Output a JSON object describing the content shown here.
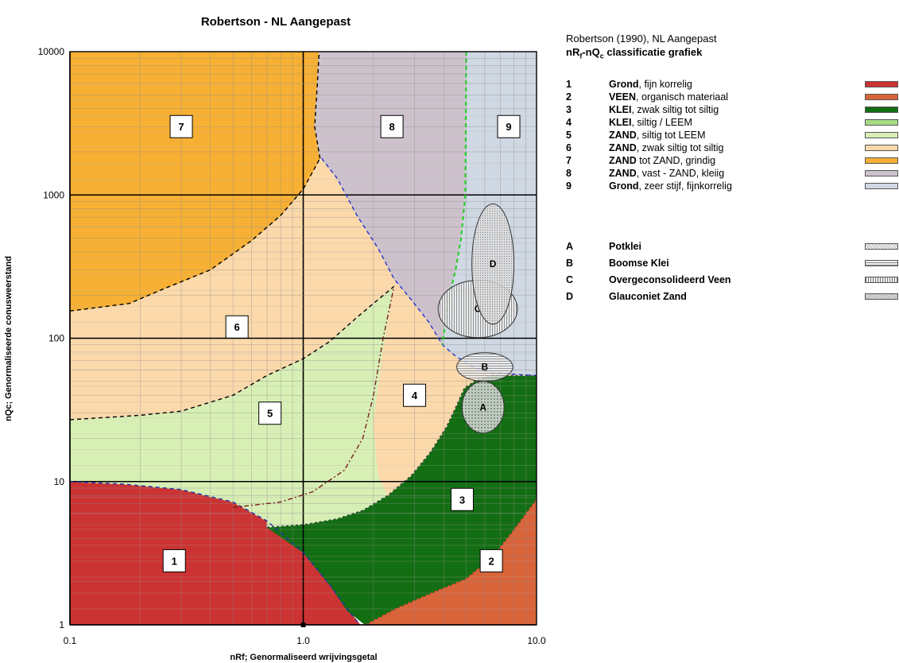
{
  "chart_data": {
    "type": "area",
    "title": "Robertson - NL Aangepast",
    "xlabel": "nRf; Genormaliseerd wrijvingsgetal",
    "ylabel": "nQc; Genormaliseerde conusweerstand",
    "xscale": "log",
    "yscale": "log",
    "xlim": [
      0.1,
      10.0
    ],
    "ylim": [
      1,
      10000
    ],
    "x_tick_labels": [
      "0.1",
      "1.0",
      "10.0"
    ],
    "y_tick_labels": [
      "1",
      "10",
      "100",
      "1000",
      "10000"
    ],
    "grid": true,
    "legend": "right",
    "zones": [
      {
        "id": "1",
        "color": "#cc3333",
        "label_pos": [
          0.28,
          2.8
        ],
        "boundary": [
          [
            0.1,
            1
          ],
          [
            0.1,
            10
          ],
          [
            0.17,
            9.6
          ],
          [
            0.3,
            8.8
          ],
          [
            0.5,
            7.2
          ],
          [
            0.7,
            5.3
          ],
          [
            1.0,
            3.2
          ],
          [
            1.3,
            1.9
          ],
          [
            1.6,
            1.2
          ],
          [
            1.75,
            1
          ],
          [
            0.1,
            1
          ]
        ]
      },
      {
        "id": "2",
        "color": "#d9643a",
        "label_pos": [
          6.4,
          2.8
        ],
        "boundary": [
          [
            1.85,
            1
          ],
          [
            2.5,
            1.3
          ],
          [
            3.5,
            1.65
          ],
          [
            5.0,
            2.1
          ],
          [
            6.5,
            3.0
          ],
          [
            8.0,
            4.6
          ],
          [
            10,
            7.5
          ],
          [
            10,
            1
          ],
          [
            1.85,
            1
          ]
        ]
      },
      {
        "id": "3",
        "color": "#136e13",
        "label_pos": [
          4.8,
          7.5
        ],
        "boundary": [
          [
            1.85,
            1
          ],
          [
            1.55,
            1.25
          ],
          [
            1.3,
            1.9
          ],
          [
            1.0,
            3.2
          ],
          [
            0.7,
            4.8
          ],
          [
            1.0,
            5.0
          ],
          [
            1.4,
            5.5
          ],
          [
            1.8,
            6.3
          ],
          [
            2.3,
            8.0
          ],
          [
            2.9,
            11
          ],
          [
            3.5,
            16
          ],
          [
            4.1,
            24
          ],
          [
            4.5,
            33
          ],
          [
            4.9,
            45
          ],
          [
            5.6,
            52
          ],
          [
            6.5,
            55
          ],
          [
            10,
            55
          ],
          [
            10,
            7.5
          ],
          [
            8.0,
            4.6
          ],
          [
            6.5,
            3.0
          ],
          [
            5.0,
            2.1
          ],
          [
            3.5,
            1.65
          ],
          [
            2.5,
            1.3
          ],
          [
            1.85,
            1
          ]
        ]
      },
      {
        "id": "4",
        "color": "#a7db86",
        "label_pos": [
          3.0,
          40
        ],
        "boundary": [
          [
            2.45,
            230
          ],
          [
            2.95,
            180
          ],
          [
            3.45,
            130
          ],
          [
            3.95,
            90
          ],
          [
            4.5,
            75
          ],
          [
            5.4,
            62
          ],
          [
            6.5,
            57
          ],
          [
            10,
            55
          ],
          [
            6.5,
            55
          ],
          [
            5.6,
            52
          ],
          [
            4.9,
            45
          ],
          [
            4.5,
            33
          ],
          [
            4.1,
            24
          ],
          [
            3.5,
            16
          ],
          [
            2.9,
            11
          ],
          [
            2.3,
            8.0
          ],
          [
            2.1,
            11
          ],
          [
            2.0,
            25
          ],
          [
            2.2,
            80
          ],
          [
            2.45,
            230
          ]
        ]
      },
      {
        "id": "5",
        "color": "#d7efb5",
        "label_pos": [
          0.72,
          30
        ],
        "boundary": [
          [
            0.1,
            10
          ],
          [
            0.1,
            27
          ],
          [
            0.2,
            29
          ],
          [
            0.3,
            31
          ],
          [
            0.5,
            40
          ],
          [
            0.7,
            55
          ],
          [
            1.0,
            72
          ],
          [
            1.3,
            95
          ],
          [
            1.7,
            140
          ],
          [
            2.0,
            175
          ],
          [
            2.45,
            230
          ],
          [
            2.2,
            80
          ],
          [
            2.0,
            25
          ],
          [
            2.1,
            11
          ],
          [
            2.3,
            8.0
          ],
          [
            1.8,
            6.3
          ],
          [
            1.4,
            5.5
          ],
          [
            1.0,
            5.0
          ],
          [
            0.7,
            4.8
          ],
          [
            0.7,
            5.3
          ],
          [
            0.5,
            7.2
          ],
          [
            0.3,
            8.8
          ],
          [
            0.17,
            9.6
          ],
          [
            0.1,
            10
          ]
        ]
      },
      {
        "id": "6",
        "color": "#fbd9ab",
        "label_pos": [
          0.52,
          120
        ],
        "boundary": [
          [
            0.1,
            27
          ],
          [
            0.1,
            155
          ],
          [
            0.18,
            175
          ],
          [
            0.25,
            220
          ],
          [
            0.4,
            300
          ],
          [
            0.6,
            480
          ],
          [
            0.8,
            720
          ],
          [
            1.0,
            1100
          ],
          [
            1.2,
            1800
          ],
          [
            1.4,
            1300
          ],
          [
            1.7,
            720
          ],
          [
            2.1,
            420
          ],
          [
            2.45,
            260
          ],
          [
            2.95,
            180
          ],
          [
            3.45,
            130
          ],
          [
            3.95,
            90
          ],
          [
            4.5,
            75
          ],
          [
            5.4,
            62
          ],
          [
            6.5,
            57
          ],
          [
            10,
            55
          ],
          [
            6.5,
            55
          ],
          [
            5.6,
            52
          ],
          [
            4.9,
            45
          ],
          [
            4.5,
            33
          ],
          [
            4.1,
            24
          ],
          [
            3.5,
            16
          ],
          [
            2.9,
            11
          ],
          [
            2.3,
            8.0
          ],
          [
            2.1,
            11
          ],
          [
            2.0,
            25
          ],
          [
            2.2,
            80
          ],
          [
            2.45,
            230
          ],
          [
            2.0,
            175
          ],
          [
            1.7,
            140
          ],
          [
            1.3,
            95
          ],
          [
            1.0,
            72
          ],
          [
            0.7,
            55
          ],
          [
            0.5,
            40
          ],
          [
            0.3,
            31
          ],
          [
            0.2,
            29
          ],
          [
            0.1,
            27
          ]
        ]
      },
      {
        "id": "7",
        "color": "#f7b034",
        "label_pos": [
          0.3,
          3000
        ],
        "boundary": [
          [
            0.1,
            155
          ],
          [
            0.1,
            10000
          ],
          [
            1.17,
            10000
          ],
          [
            1.15,
            6000
          ],
          [
            1.12,
            3000
          ],
          [
            1.18,
            1800
          ],
          [
            1.0,
            1100
          ],
          [
            0.8,
            720
          ],
          [
            0.6,
            480
          ],
          [
            0.4,
            300
          ],
          [
            0.25,
            220
          ],
          [
            0.18,
            175
          ],
          [
            0.1,
            155
          ]
        ]
      },
      {
        "id": "8",
        "color": "#cdc2cc",
        "label_pos": [
          2.4,
          3000
        ],
        "boundary": [
          [
            1.17,
            10000
          ],
          [
            5.0,
            10000
          ],
          [
            4.95,
            1000
          ],
          [
            4.75,
            500
          ],
          [
            4.5,
            300
          ],
          [
            4.2,
            190
          ],
          [
            3.95,
            90
          ],
          [
            3.45,
            130
          ],
          [
            2.95,
            180
          ],
          [
            2.45,
            260
          ],
          [
            2.1,
            420
          ],
          [
            1.7,
            720
          ],
          [
            1.4,
            1300
          ],
          [
            1.2,
            1800
          ],
          [
            1.18,
            1800
          ],
          [
            1.12,
            3000
          ],
          [
            1.15,
            6000
          ],
          [
            1.17,
            10000
          ]
        ]
      },
      {
        "id": "9",
        "color": "#cfd8e3",
        "label_pos": [
          7.6,
          3000
        ],
        "boundary": [
          [
            5.0,
            10000
          ],
          [
            10,
            10000
          ],
          [
            10,
            55
          ],
          [
            6.5,
            57
          ],
          [
            5.4,
            62
          ],
          [
            4.5,
            75
          ],
          [
            3.95,
            90
          ],
          [
            4.2,
            190
          ],
          [
            4.5,
            300
          ],
          [
            4.75,
            500
          ],
          [
            4.95,
            1000
          ],
          [
            5.0,
            10000
          ]
        ]
      }
    ],
    "ellipses": [
      {
        "id": "A",
        "cx": 5.9,
        "cy": 33,
        "rx_dec": 0.09,
        "ry_dec": 0.18
      },
      {
        "id": "B",
        "cx": 6.0,
        "cy": 63,
        "rx_dec": 0.12,
        "ry_dec": 0.1
      },
      {
        "id": "C",
        "cx": 5.6,
        "cy": 160,
        "rx_dec": 0.17,
        "ry_dec": 0.2
      },
      {
        "id": "D",
        "cx": 6.5,
        "cy": 330,
        "rx_dec": 0.09,
        "ry_dec": 0.42
      }
    ],
    "legend_entries": [
      {
        "num": "1",
        "bold": "Grond",
        "rest": ", fijn korrelig",
        "color": "#cc3333"
      },
      {
        "num": "2",
        "bold": "VEEN",
        "rest": ", organisch materiaal",
        "color": "#d9643a"
      },
      {
        "num": "3",
        "bold": "KLEI",
        "rest": ", zwak siltig tot siltig",
        "color": "#136e13"
      },
      {
        "num": "4",
        "bold": "KLEI",
        "rest": ", siltig / LEEM",
        "color": "#a7db86"
      },
      {
        "num": "5",
        "bold": "ZAND",
        "rest": ", siltig tot LEEM",
        "color": "#d7efb5"
      },
      {
        "num": "6",
        "bold": "ZAND",
        "rest": ", zwak siltig tot siltig",
        "color": "#fbd9ab"
      },
      {
        "num": "7",
        "bold": "ZAND",
        "rest": " tot ZAND, grindig",
        "color": "#f7b034"
      },
      {
        "num": "8",
        "bold": "ZAND",
        "rest": ", vast - ZAND, kleiig",
        "color": "#cdc2cc"
      },
      {
        "num": "9",
        "bold": "Grond",
        "rest": ", zeer stijf, fijnkorrelig",
        "color": "#cfd8e3"
      }
    ],
    "legend_ellipse_entries": [
      {
        "letter": "A",
        "text": "Potklei"
      },
      {
        "letter": "B",
        "text": "Boomse Klei"
      },
      {
        "letter": "C",
        "text": "Overgeconsolideerd Veen"
      },
      {
        "letter": "D",
        "text": "Glauconiet Zand"
      }
    ]
  },
  "legend": {
    "title": "Robertson (1990), NL Aangepast",
    "subtitle_pre": "nR",
    "subtitle_sub1": "f",
    "subtitle_mid": "-nQ",
    "subtitle_sub2": "c",
    "subtitle_post": " classificatie grafiek"
  }
}
